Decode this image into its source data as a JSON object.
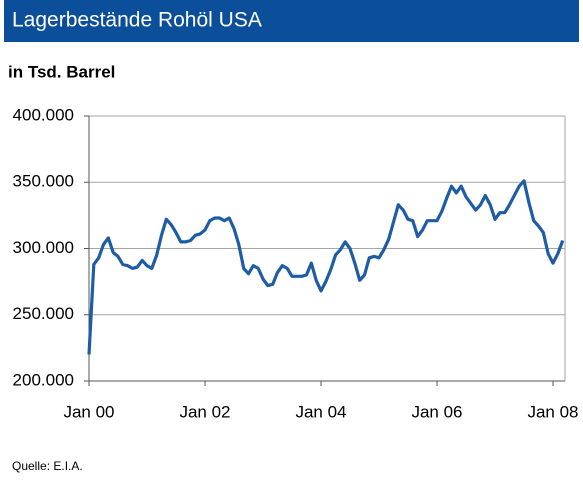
{
  "chart_data": {
    "type": "line",
    "title": "Lagerbestände Rohöl USA",
    "subtitle": "in Tsd. Barrel",
    "source": "Quelle: E.I.A.",
    "categories": [
      "Jan 00",
      null,
      null,
      null,
      null,
      null,
      null,
      null,
      null,
      null,
      null,
      null,
      null,
      null,
      null,
      null,
      null,
      null,
      null,
      null,
      null,
      null,
      null,
      null,
      "Jan 02",
      null,
      null,
      null,
      null,
      null,
      null,
      null,
      null,
      null,
      null,
      null,
      null,
      null,
      null,
      null,
      null,
      null,
      null,
      null,
      null,
      null,
      null,
      null,
      "Jan 04",
      null,
      null,
      null,
      null,
      null,
      null,
      null,
      null,
      null,
      null,
      null,
      null,
      null,
      null,
      null,
      null,
      null,
      null,
      null,
      null,
      null,
      null,
      null,
      "Jan 06",
      null,
      null,
      null,
      null,
      null,
      null,
      null,
      null,
      null,
      null,
      null,
      null,
      null,
      null,
      null,
      null,
      null,
      null,
      null,
      null,
      null,
      null,
      null,
      "Jan 08",
      null,
      null
    ],
    "series": [
      {
        "color": "#1f5ca6",
        "values": [
          220000,
          288000,
          293000,
          303000,
          308000,
          297000,
          294000,
          288000,
          287000,
          285000,
          286000,
          291000,
          287000,
          285000,
          295000,
          310000,
          322000,
          318000,
          312000,
          305000,
          305000,
          306000,
          310000,
          311000,
          314000,
          321000,
          323000,
          323000,
          321000,
          323000,
          315000,
          303000,
          285000,
          281000,
          287000,
          285000,
          277000,
          272000,
          273000,
          282000,
          287000,
          285000,
          279000,
          279000,
          279000,
          280000,
          289000,
          276000,
          268000,
          275000,
          284000,
          295000,
          299000,
          305000,
          300000,
          289000,
          276000,
          280000,
          293000,
          294000,
          293000,
          299000,
          307000,
          320000,
          333000,
          329000,
          322000,
          321000,
          309000,
          314000,
          321000,
          321000,
          321000,
          328000,
          338000,
          347000,
          342000,
          347000,
          339000,
          334000,
          329000,
          333000,
          340000,
          333000,
          322000,
          327000,
          327000,
          333000,
          340000,
          347000,
          351000,
          335000,
          321000,
          317000,
          312000,
          296000,
          289000,
          296000,
          306000
        ]
      }
    ],
    "ylim": [
      200000,
      400000
    ],
    "yticks": [
      {
        "value": 200000,
        "label": "200.000"
      },
      {
        "value": 250000,
        "label": "250.000"
      },
      {
        "value": 300000,
        "label": "300.000"
      },
      {
        "value": 350000,
        "label": "350.000"
      },
      {
        "value": 400000,
        "label": "400.000"
      }
    ],
    "grid": true
  }
}
